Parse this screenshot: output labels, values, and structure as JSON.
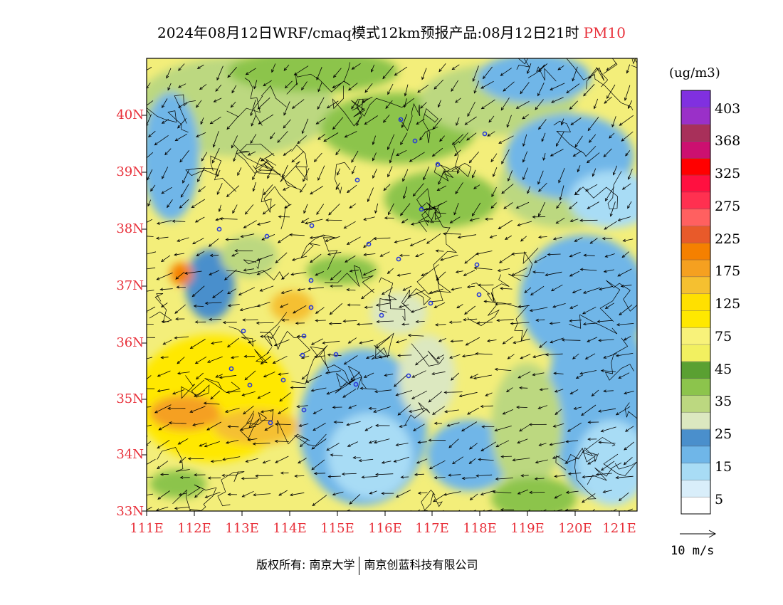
{
  "title": {
    "main": "2024年08月12日WRF/cmaq模式12km预报产品:08月12日21时",
    "pollutant": "PM10"
  },
  "map": {
    "lat_labels": [
      "40N",
      "39N",
      "38N",
      "37N",
      "36N",
      "35N",
      "34N",
      "33N"
    ],
    "lon_labels": [
      "111E",
      "112E",
      "113E",
      "114E",
      "115E",
      "116E",
      "117E",
      "118E",
      "119E",
      "120E",
      "121E"
    ],
    "region": {
      "lon_range": [
        111,
        121.3
      ],
      "lat_range": [
        33,
        41
      ]
    }
  },
  "legend": {
    "units": "(ug/m3)",
    "levels": [
      "403",
      "368",
      "325",
      "275",
      "225",
      "175",
      "125",
      "75",
      "45",
      "35",
      "25",
      "15",
      "5"
    ],
    "colors": [
      "#ffffff",
      "#d9eefa",
      "#a8dcf5",
      "#6fb6e8",
      "#4a8fcc",
      "#dce8c0",
      "#bcd880",
      "#8cc44c",
      "#5aa032",
      "#f2f060",
      "#f8f27a",
      "#ffe800",
      "#ffe000",
      "#f5c030",
      "#f5a020",
      "#f58000",
      "#e85a2a",
      "#ff6060",
      "#ff3050",
      "#ff1040",
      "#ff0000",
      "#cc1070",
      "#a8305a",
      "#9a30c8",
      "#8030e0"
    ]
  },
  "vector": {
    "label": "10 m/s"
  },
  "footer": {
    "copyright_left": "版权所有: 南京大学",
    "copyright_right": "南京创蓝科技有限公司"
  }
}
